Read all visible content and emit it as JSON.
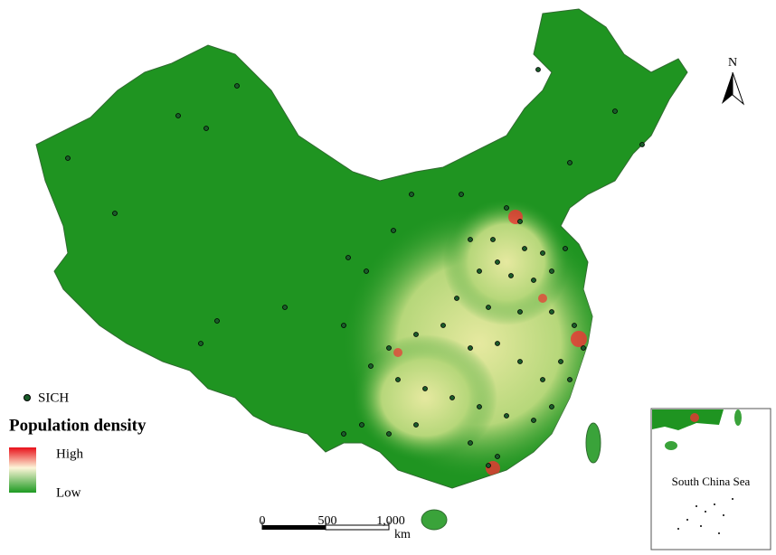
{
  "north_arrow": {
    "label": "N"
  },
  "legend": {
    "point_label": "SICH",
    "title": "Population density",
    "high": "High",
    "low": "Low"
  },
  "scale_bar": {
    "labels": [
      "0",
      "500",
      "1,000"
    ],
    "unit": "km"
  },
  "inset": {
    "label": "South China Sea"
  }
}
